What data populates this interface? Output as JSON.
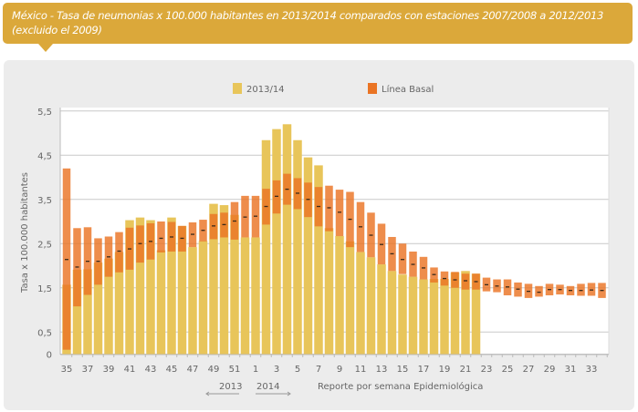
{
  "header": {
    "title": "México - Tasa de neumonias x 100.000 habitantes en 2013/2014 comparados con estaciones 2007/2008 a 2012/2013 (excluido el 2009)"
  },
  "colors": {
    "banner": "#dba83a",
    "series_2013_14": "#e8c55a",
    "baseline": "#ea7424",
    "mean_mark": "#3a2a1a"
  },
  "chart_data": {
    "type": "bar",
    "xlabel": "Reporte por semana Epidemiológica",
    "ylabel": "Tasa x 100.000 habitantes",
    "ylim": [
      0,
      5.5
    ],
    "yticks": [
      0,
      0.5,
      1.5,
      2.5,
      3.5,
      4.5,
      5.5
    ],
    "ytick_labels": [
      "0",
      "0,5",
      "1,5",
      "2,5",
      "3,5",
      "4,5",
      "5,5"
    ],
    "grid": true,
    "legend_position": "top-center",
    "year_labels": [
      "2013",
      "2014"
    ],
    "categories": [
      35,
      36,
      37,
      38,
      39,
      40,
      41,
      42,
      43,
      44,
      45,
      46,
      47,
      48,
      49,
      50,
      51,
      52,
      1,
      2,
      3,
      4,
      5,
      6,
      7,
      8,
      9,
      10,
      11,
      12,
      13,
      14,
      15,
      16,
      17,
      18,
      19,
      20,
      21,
      22,
      23,
      24,
      25,
      26,
      27,
      28,
      29,
      30,
      31,
      32,
      33,
      34
    ],
    "xtick_labels": [
      "35",
      "37",
      "39",
      "41",
      "43",
      "45",
      "47",
      "49",
      "51",
      "1",
      "3",
      "5",
      "7",
      "9",
      "11",
      "13",
      "15",
      "17",
      "19",
      "21",
      "23",
      "25",
      "27",
      "29",
      "31",
      "33"
    ],
    "series": [
      {
        "name": "2013/14",
        "type": "bar",
        "values": [
          1.57,
          1.91,
          1.92,
          2.07,
          2.16,
          2.31,
          3.03,
          3.09,
          3.03,
          2.35,
          3.09,
          2.9,
          2.42,
          2.56,
          3.4,
          3.37,
          3.15,
          2.64,
          2.64,
          4.84,
          5.09,
          5.2,
          4.84,
          4.45,
          4.27,
          2.85,
          2.67,
          2.55,
          2.31,
          2.19,
          2.03,
          1.88,
          1.8,
          1.75,
          1.69,
          1.7,
          1.7,
          1.85,
          1.88,
          1.82,
          null,
          null,
          null,
          null,
          null,
          null,
          null,
          null,
          null,
          null,
          null,
          null
        ]
      },
      {
        "name": "Línea Basal",
        "type": "range",
        "high": [
          4.2,
          2.85,
          2.87,
          2.62,
          2.66,
          2.76,
          2.86,
          2.91,
          2.96,
          3.0,
          2.99,
          2.9,
          2.98,
          3.04,
          3.17,
          3.2,
          3.44,
          3.58,
          3.58,
          3.74,
          3.93,
          4.08,
          3.98,
          3.88,
          3.78,
          3.81,
          3.72,
          3.67,
          3.44,
          3.2,
          2.95,
          2.65,
          2.5,
          2.32,
          2.2,
          1.96,
          1.87,
          1.86,
          1.82,
          1.82,
          1.73,
          1.69,
          1.69,
          1.62,
          1.59,
          1.54,
          1.59,
          1.57,
          1.54,
          1.59,
          1.61,
          1.61
        ],
        "low": [
          0.1,
          1.08,
          1.34,
          1.57,
          1.75,
          1.85,
          1.91,
          2.07,
          2.14,
          2.3,
          2.32,
          2.32,
          2.42,
          2.55,
          2.6,
          2.64,
          2.59,
          2.64,
          2.64,
          2.93,
          3.18,
          3.38,
          3.28,
          3.1,
          2.89,
          2.78,
          2.67,
          2.42,
          2.31,
          2.19,
          2.03,
          1.88,
          1.81,
          1.75,
          1.69,
          1.62,
          1.55,
          1.5,
          1.46,
          1.46,
          1.42,
          1.4,
          1.33,
          1.3,
          1.27,
          1.3,
          1.33,
          1.35,
          1.33,
          1.32,
          1.32,
          1.27
        ],
        "mean": [
          2.14,
          1.97,
          2.1,
          2.1,
          2.2,
          2.33,
          2.38,
          2.5,
          2.55,
          2.62,
          2.65,
          2.62,
          2.71,
          2.8,
          2.9,
          2.93,
          3.01,
          3.1,
          3.12,
          3.34,
          3.57,
          3.73,
          3.64,
          3.5,
          3.34,
          3.31,
          3.21,
          3.05,
          2.88,
          2.69,
          2.48,
          2.27,
          2.14,
          2.03,
          1.95,
          1.8,
          1.71,
          1.68,
          1.66,
          1.64,
          1.57,
          1.54,
          1.52,
          1.47,
          1.42,
          1.4,
          1.46,
          1.46,
          1.44,
          1.44,
          1.45,
          1.44
        ]
      }
    ]
  }
}
